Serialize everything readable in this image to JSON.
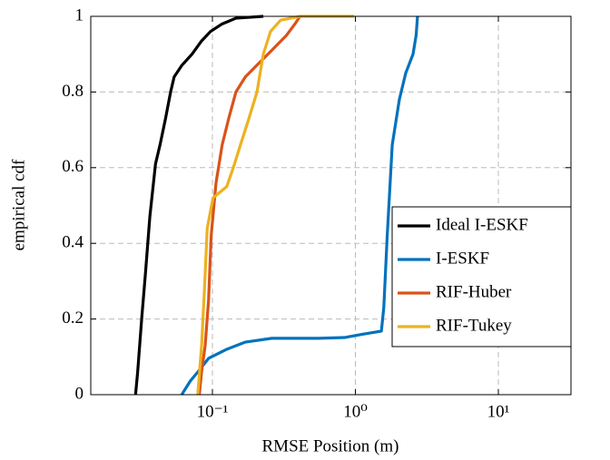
{
  "chart_data": {
    "type": "line",
    "x_label": "RMSE Position (m)",
    "y_label": "empirical cdf",
    "xscale": "log",
    "xlim": [
      0.0141,
      32.2
    ],
    "ylim": [
      0,
      1
    ],
    "xticks": [
      {
        "value": 0.1,
        "label": "10⁻¹"
      },
      {
        "value": 1,
        "label": "10⁰"
      },
      {
        "value": 10,
        "label": "10¹"
      }
    ],
    "yticks": [
      0,
      0.2,
      0.4,
      0.6,
      0.8,
      1
    ],
    "grid": true,
    "legend": "right",
    "series": [
      {
        "name": "Ideal I-ESKF",
        "color": "#000000",
        "x": [
          0.029,
          0.03,
          0.032,
          0.034,
          0.0365,
          0.04,
          0.043,
          0.047,
          0.051,
          0.054,
          0.061,
          0.072,
          0.084,
          0.097,
          0.117,
          0.146,
          0.227
        ],
        "values": [
          0,
          0.06,
          0.2,
          0.32,
          0.47,
          0.61,
          0.66,
          0.73,
          0.8,
          0.84,
          0.87,
          0.9,
          0.935,
          0.96,
          0.98,
          0.995,
          1
        ]
      },
      {
        "name": "I-ESKF",
        "color": "#0072bd",
        "x": [
          0.061,
          0.07,
          0.079,
          0.094,
          0.126,
          0.17,
          0.26,
          0.55,
          0.84,
          1.13,
          1.52,
          1.58,
          1.67,
          1.81,
          2.03,
          2.25,
          2.53,
          2.66,
          2.72
        ],
        "values": [
          0,
          0.036,
          0.06,
          0.096,
          0.12,
          0.139,
          0.149,
          0.149,
          0.151,
          0.16,
          0.168,
          0.23,
          0.42,
          0.66,
          0.78,
          0.85,
          0.9,
          0.95,
          1
        ]
      },
      {
        "name": "RIF-Huber",
        "color": "#d95319",
        "x": [
          0.081,
          0.084,
          0.089,
          0.094,
          0.098,
          0.106,
          0.117,
          0.13,
          0.146,
          0.17,
          0.21,
          0.26,
          0.33,
          0.378,
          0.41
        ],
        "values": [
          0,
          0.06,
          0.13,
          0.25,
          0.42,
          0.56,
          0.66,
          0.73,
          0.8,
          0.84,
          0.875,
          0.91,
          0.95,
          0.98,
          1
        ]
      },
      {
        "name": "RIF-Tukey",
        "color": "#edb120",
        "x": [
          0.079,
          0.084,
          0.088,
          0.092,
          0.101,
          0.126,
          0.14,
          0.157,
          0.18,
          0.205,
          0.227,
          0.255,
          0.3,
          0.41,
          0.98
        ],
        "values": [
          0,
          0.13,
          0.28,
          0.44,
          0.52,
          0.55,
          0.6,
          0.66,
          0.73,
          0.8,
          0.9,
          0.96,
          0.99,
          1.0,
          1.0
        ]
      }
    ]
  }
}
